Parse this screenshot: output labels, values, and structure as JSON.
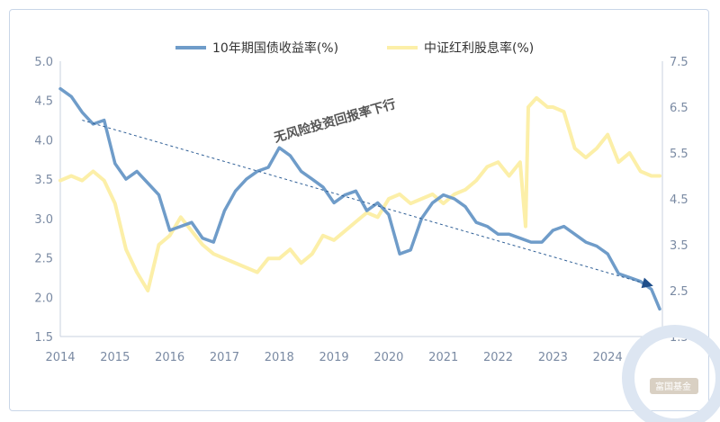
{
  "chart_data": {
    "type": "line",
    "legend_position": "top-center",
    "x_ticks": [
      "2014",
      "2015",
      "2016",
      "2017",
      "2018",
      "2019",
      "2020",
      "2021",
      "2022",
      "2023",
      "2024"
    ],
    "y_left": {
      "lim": [
        1.5,
        5.0
      ],
      "ticks": [
        "5.0",
        "4.5",
        "4.0",
        "3.5",
        "3.0",
        "2.5",
        "2.0",
        "1.5"
      ]
    },
    "y_right": {
      "lim": [
        1.5,
        7.5
      ],
      "ticks": [
        "7.5",
        "6.5",
        "5.5",
        "4.5",
        "3.5",
        "2.5",
        "1.5"
      ]
    },
    "series": [
      {
        "name": "10年期国债收益率(%)",
        "axis": "left",
        "color": "#6f9cc9",
        "x": [
          2014.0,
          2014.2,
          2014.4,
          2014.6,
          2014.8,
          2015.0,
          2015.2,
          2015.4,
          2015.6,
          2015.8,
          2016.0,
          2016.2,
          2016.4,
          2016.6,
          2016.8,
          2017.0,
          2017.2,
          2017.4,
          2017.6,
          2017.8,
          2018.0,
          2018.2,
          2018.4,
          2018.6,
          2018.8,
          2019.0,
          2019.2,
          2019.4,
          2019.6,
          2019.8,
          2020.0,
          2020.2,
          2020.4,
          2020.6,
          2020.8,
          2021.0,
          2021.2,
          2021.4,
          2021.6,
          2021.8,
          2022.0,
          2022.2,
          2022.4,
          2022.6,
          2022.8,
          2023.0,
          2023.2,
          2023.4,
          2023.6,
          2023.8,
          2024.0,
          2024.2,
          2024.4,
          2024.6,
          2024.8,
          2024.95
        ],
        "values": [
          4.65,
          4.55,
          4.35,
          4.2,
          4.25,
          3.7,
          3.5,
          3.6,
          3.45,
          3.3,
          2.85,
          2.9,
          2.95,
          2.75,
          2.7,
          3.1,
          3.35,
          3.5,
          3.6,
          3.65,
          3.9,
          3.8,
          3.6,
          3.5,
          3.4,
          3.2,
          3.3,
          3.35,
          3.1,
          3.2,
          3.05,
          2.55,
          2.6,
          3.0,
          3.2,
          3.3,
          3.25,
          3.15,
          2.95,
          2.9,
          2.8,
          2.8,
          2.75,
          2.7,
          2.7,
          2.85,
          2.9,
          2.8,
          2.7,
          2.65,
          2.55,
          2.3,
          2.25,
          2.2,
          2.1,
          1.85
        ]
      },
      {
        "name": "中证红利股息率(%)",
        "axis": "right",
        "color": "#fcefa8",
        "x": [
          2014.0,
          2014.2,
          2014.4,
          2014.6,
          2014.8,
          2015.0,
          2015.2,
          2015.4,
          2015.6,
          2015.8,
          2016.0,
          2016.2,
          2016.4,
          2016.6,
          2016.8,
          2017.0,
          2017.2,
          2017.4,
          2017.6,
          2017.8,
          2018.0,
          2018.2,
          2018.4,
          2018.6,
          2018.8,
          2019.0,
          2019.2,
          2019.4,
          2019.6,
          2019.8,
          2020.0,
          2020.2,
          2020.4,
          2020.6,
          2020.8,
          2021.0,
          2021.2,
          2021.4,
          2021.6,
          2021.8,
          2022.0,
          2022.2,
          2022.4,
          2022.5,
          2022.55,
          2022.7,
          2022.9,
          2023.0,
          2023.2,
          2023.4,
          2023.6,
          2023.8,
          2024.0,
          2024.2,
          2024.4,
          2024.6,
          2024.8,
          2024.95
        ],
        "values": [
          4.9,
          5.0,
          4.9,
          5.1,
          4.9,
          4.4,
          3.4,
          2.9,
          2.5,
          3.5,
          3.7,
          4.1,
          3.8,
          3.5,
          3.3,
          3.2,
          3.1,
          3.0,
          2.9,
          3.2,
          3.2,
          3.4,
          3.1,
          3.3,
          3.7,
          3.6,
          3.8,
          4.0,
          4.2,
          4.1,
          4.5,
          4.6,
          4.4,
          4.5,
          4.6,
          4.4,
          4.6,
          4.7,
          4.9,
          5.2,
          5.3,
          5.0,
          5.3,
          3.9,
          6.5,
          6.7,
          6.5,
          6.5,
          6.4,
          5.6,
          5.4,
          5.6,
          5.9,
          5.3,
          5.5,
          5.1,
          5.0,
          5.0
        ]
      }
    ],
    "trend": {
      "start": [
        2014.4,
        4.25
      ],
      "end": [
        2024.8,
        2.15
      ]
    },
    "annotation": "无风险投资回报率下行"
  },
  "watermark": "富国基金"
}
